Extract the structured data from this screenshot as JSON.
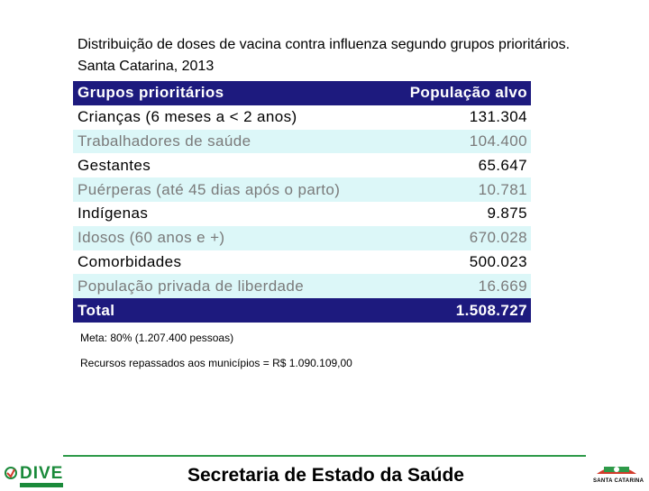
{
  "title": "Distribuição de doses de vacina contra influenza segundo grupos prioritários. Santa Catarina, 2013",
  "table": {
    "header": {
      "group": "Grupos prioritários",
      "value": "População alvo"
    },
    "rows": [
      {
        "group": "Crianças (6 meses a < 2 anos)",
        "value": "131.304"
      },
      {
        "group": "Trabalhadores de saúde",
        "value": "104.400"
      },
      {
        "group": "Gestantes",
        "value": "65.647"
      },
      {
        "group": "Puérperas (até 45 dias após o parto)",
        "value": "10.781"
      },
      {
        "group": "Indígenas",
        "value": "9.875"
      },
      {
        "group": "Idosos (60 anos e +)",
        "value": "670.028"
      },
      {
        "group": "Comorbidades",
        "value": "500.023"
      },
      {
        "group": "População privada de liberdade",
        "value": "16.669"
      }
    ],
    "total": {
      "group": "Total",
      "value": "1.508.727"
    }
  },
  "notes": {
    "meta": "Meta: 80% (1.207.400 pessoas)",
    "recursos": "Recursos repassados aos municípios = R$ 1.090.109,00"
  },
  "footer": {
    "text": "Secretaria de Estado da Saúde",
    "left_logo": "DIVE",
    "right_logo": "SANTA CATARINA"
  },
  "colors": {
    "header_bg": "#1d1a7e",
    "stripe_bg": "#dcf7f8",
    "brand_green": "#1a8a3a"
  }
}
